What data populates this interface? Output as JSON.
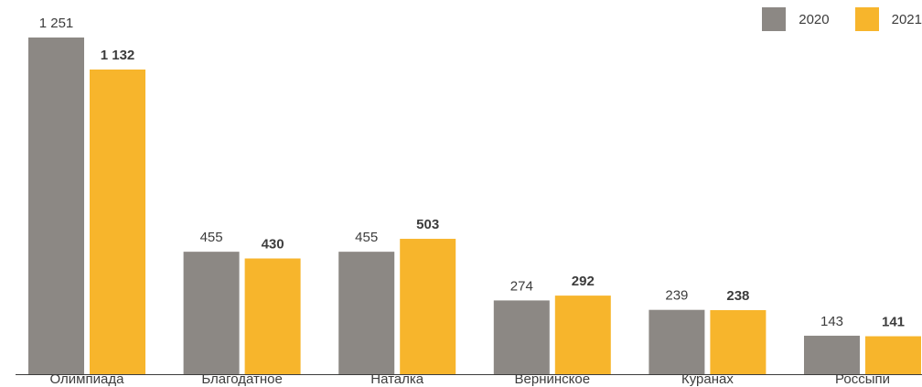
{
  "chart_data": {
    "type": "bar",
    "categories": [
      "Олимпиада",
      "Благодатное",
      "Наталка",
      "Вернинское",
      "Куранах",
      "Россыпи"
    ],
    "series": [
      {
        "name": "2020",
        "values": [
          1251,
          455,
          455,
          274,
          239,
          143
        ],
        "labels": [
          "1 251",
          "455",
          "455",
          "274",
          "239",
          "143"
        ],
        "color": "#8c8884"
      },
      {
        "name": "2021",
        "values": [
          1132,
          430,
          503,
          292,
          238,
          141
        ],
        "labels": [
          "1 132",
          "430",
          "503",
          "292",
          "238",
          "141"
        ],
        "color": "#f7b52c"
      }
    ],
    "ylim": [
      0,
      1251
    ],
    "grid": false,
    "legend": "top-right"
  }
}
